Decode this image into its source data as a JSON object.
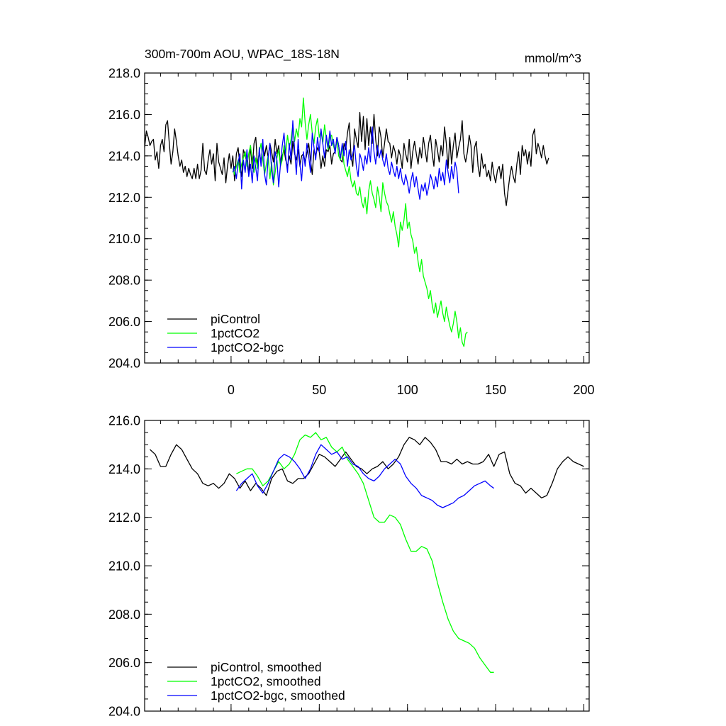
{
  "chart_data": [
    {
      "type": "line",
      "title": "300m-700m AOU, WPAC_18S-18N",
      "units": "mmol/m^3",
      "xlim": [
        -49,
        203
      ],
      "ylim": [
        204,
        218
      ],
      "yticks": [
        "204.0",
        "206.0",
        "208.0",
        "210.0",
        "212.0",
        "214.0",
        "216.0",
        "218.0"
      ],
      "xticks": [
        "0",
        "50",
        "100",
        "150",
        "200"
      ],
      "legend_position": "bottom-left",
      "series": [
        {
          "name": "piControl",
          "color": "#000000",
          "x_start": -49,
          "x_step": 1,
          "values": [
            214.4,
            215.2,
            214.9,
            214.5,
            214.7,
            214.8,
            213.8,
            214.2,
            213.4,
            214.5,
            214.8,
            214.2,
            215.5,
            215.7,
            214.6,
            213.6,
            214.2,
            215.3,
            214.7,
            214.0,
            213.5,
            213.8,
            213.2,
            213.5,
            213.0,
            213.4,
            213.1,
            212.9,
            213.4,
            212.9,
            213.6,
            212.9,
            213.3,
            214.6,
            213.3,
            213.1,
            213.8,
            214.3,
            213.6,
            214.1,
            212.8,
            214.6,
            213.7,
            213.4,
            213.1,
            213.9,
            212.7,
            213.5,
            214.1,
            213.4,
            214.0,
            212.8,
            214.1,
            214.4,
            213.5,
            213.0,
            214.3,
            214.0,
            213.7,
            213.1,
            214.5,
            213.4,
            214.6,
            214.9,
            213.5,
            214.2,
            213.7,
            214.5,
            214.0,
            214.5,
            213.9,
            214.6,
            214.2,
            213.7,
            214.8,
            214.1,
            214.5,
            213.6,
            214.0,
            214.3,
            213.8,
            213.5,
            214.0,
            213.6,
            214.7,
            214.1,
            213.8,
            214.3,
            213.5,
            214.0,
            214.1,
            213.7,
            214.1,
            214.6,
            213.8,
            213.1,
            214.3,
            214.0,
            214.4,
            214.2,
            213.4,
            214.0,
            213.5,
            214.3,
            214.2,
            214.5,
            213.6,
            214.1,
            214.2,
            214.9,
            214.5,
            213.8,
            213.7,
            214.6,
            214.3,
            215.1,
            215.6,
            214.0,
            213.5,
            215.3,
            214.8,
            214.4,
            216.1,
            214.7,
            215.9,
            214.3,
            215.8,
            214.5,
            215.4,
            214.6,
            216.0,
            214.8,
            214.0,
            215.4,
            214.9,
            213.9,
            214.6,
            215.3,
            214.7,
            214.6,
            213.9,
            214.5,
            214.2,
            213.6,
            214.3,
            214.0,
            213.4,
            214.6,
            214.1,
            213.7,
            214.8,
            213.4,
            214.2,
            214.7,
            214.1,
            213.6,
            214.4,
            213.9,
            214.9,
            214.3,
            213.7,
            214.6,
            215.0,
            214.1,
            213.5,
            214.8,
            214.3,
            213.7,
            214.5,
            214.0,
            215.4,
            214.6,
            213.4,
            214.9,
            213.6,
            214.5,
            215.1,
            213.9,
            214.4,
            214.8,
            215.7,
            214.1,
            213.7,
            214.2,
            215.0,
            214.5,
            213.2,
            214.4,
            214.7,
            213.5,
            213.0,
            214.1,
            213.4,
            213.6,
            213.0,
            213.3,
            212.8,
            213.7,
            213.1,
            212.7,
            213.3,
            213.5,
            212.9,
            213.6,
            212.2,
            211.6,
            212.3,
            213.0,
            213.5,
            213.0,
            212.7,
            213.6,
            214.2,
            213.1,
            214.5,
            214.0,
            214.3,
            213.6,
            214.2,
            213.5,
            215.0,
            215.3,
            214.1,
            214.6,
            214.3,
            213.9,
            214.5,
            214.0,
            213.6,
            213.9
          ]
        },
        {
          "name": "1pctCO2",
          "color": "#00ff00",
          "x_start": 1,
          "x_step": 1,
          "values": [
            213.4,
            213.1,
            213.5,
            213.8,
            213.2,
            213.6,
            213.9,
            214.2,
            213.5,
            214.1,
            214.5,
            213.8,
            213.2,
            213.9,
            213.4,
            214.2,
            214.6,
            213.8,
            213.1,
            213.6,
            214.0,
            212.9,
            213.7,
            212.6,
            213.2,
            213.9,
            214.3,
            213.5,
            213.8,
            214.5,
            214.1,
            215.0,
            214.4,
            214.8,
            215.5,
            214.7,
            215.3,
            214.9,
            215.8,
            215.4,
            216.8,
            215.6,
            214.8,
            215.5,
            216.0,
            215.1,
            214.6,
            215.4,
            215.8,
            214.9,
            215.2,
            214.6,
            215.5,
            214.8,
            214.3,
            214.9,
            215.0,
            214.5,
            214.2,
            214.8,
            214.0,
            213.8,
            214.5,
            213.6,
            213.3,
            213.0,
            213.5,
            212.8,
            212.5,
            212.8,
            212.2,
            212.1,
            212.5,
            211.8,
            211.5,
            212.0,
            211.2,
            212.3,
            212.8,
            212.2,
            211.9,
            211.5,
            212.5,
            212.0,
            211.3,
            212.7,
            212.2,
            211.8,
            211.6,
            211.2,
            210.8,
            211.3,
            210.6,
            210.2,
            209.6,
            210.8,
            210.4,
            210.9,
            211.7,
            210.5,
            210.8,
            210.2,
            209.9,
            209.3,
            209.6,
            208.9,
            208.4,
            209.0,
            208.2,
            207.9,
            207.6,
            207.1,
            207.5,
            206.8,
            206.4,
            206.9,
            206.2,
            206.6,
            207.0,
            206.4,
            206.0,
            206.7,
            206.2,
            205.8,
            205.5,
            205.9,
            206.5,
            206.0,
            205.2,
            205.7,
            205.0,
            204.8,
            205.4,
            205.5
          ]
        },
        {
          "name": "1pctCO2-bgc",
          "color": "#0000ff",
          "x_start": 1,
          "x_step": 1,
          "values": [
            213.2,
            213.5,
            212.9,
            213.7,
            214.1,
            212.4,
            213.8,
            213.2,
            214.3,
            213.0,
            213.6,
            212.7,
            214.0,
            213.4,
            212.8,
            214.4,
            213.5,
            214.8,
            213.1,
            212.6,
            213.9,
            214.6,
            213.3,
            212.7,
            214.2,
            213.8,
            212.5,
            213.6,
            214.5,
            215.1,
            214.0,
            213.2,
            214.6,
            213.8,
            215.7,
            214.3,
            213.1,
            214.8,
            213.6,
            212.8,
            214.2,
            213.5,
            214.6,
            214.0,
            213.2,
            215.1,
            214.4,
            213.8,
            214.9,
            214.2,
            215.3,
            214.6,
            213.9,
            215.0,
            214.4,
            215.2,
            214.5,
            214.8,
            214.1,
            214.9,
            214.5,
            213.9,
            214.6,
            214.0,
            214.7,
            213.5,
            214.3,
            213.8,
            214.1,
            214.5,
            213.5,
            213.0,
            214.1,
            213.8,
            213.3,
            214.0,
            213.6,
            214.4,
            213.7,
            215.4,
            214.2,
            213.6,
            214.5,
            213.9,
            214.3,
            213.8,
            213.5,
            214.1,
            213.4,
            213.1,
            213.7,
            213.3,
            213.0,
            213.5,
            212.9,
            213.4,
            212.8,
            212.6,
            213.1,
            212.7,
            212.2,
            212.8,
            213.2,
            212.5,
            213.0,
            212.4,
            211.9,
            212.6,
            212.3,
            212.7,
            212.1,
            212.5,
            213.1,
            212.8,
            212.4,
            213.0,
            212.5,
            213.4,
            212.8,
            213.2,
            212.6,
            213.8,
            213.2,
            212.7,
            213.5,
            212.9,
            213.7,
            213.3,
            212.2
          ]
        }
      ]
    },
    {
      "type": "line",
      "xlim": [
        -49,
        203
      ],
      "ylim": [
        204,
        216
      ],
      "yticks": [
        "204.0",
        "206.0",
        "208.0",
        "210.0",
        "212.0",
        "214.0",
        "216.0"
      ],
      "legend_position": "bottom-left",
      "series": [
        {
          "name": "piControl, smoothed",
          "color": "#000000",
          "x": [
            -46,
            -43,
            -40,
            -37,
            -34,
            -31,
            -28,
            -25,
            -22,
            -19,
            -16,
            -13,
            -10,
            -7,
            -4,
            -1,
            2,
            5,
            8,
            11,
            14,
            17,
            20,
            23,
            26,
            29,
            32,
            35,
            38,
            41,
            44,
            47,
            50,
            53,
            56,
            59,
            62,
            65,
            68,
            71,
            74,
            77,
            80,
            83,
            86,
            89,
            92,
            95,
            98,
            101,
            104,
            107,
            110,
            113,
            116,
            119,
            122,
            125,
            128,
            131,
            134,
            137,
            140,
            143,
            146,
            149,
            152,
            155,
            158,
            161,
            164,
            167,
            170,
            173,
            176,
            179,
            182,
            185,
            188,
            191,
            194,
            197,
            200
          ],
          "values": [
            214.8,
            214.6,
            214.1,
            214.1,
            214.6,
            215.0,
            214.8,
            214.4,
            214.0,
            213.8,
            213.4,
            213.3,
            213.4,
            213.2,
            213.4,
            213.8,
            213.6,
            213.2,
            213.5,
            213.1,
            213.4,
            213.2,
            212.9,
            213.6,
            213.9,
            214.0,
            213.5,
            213.4,
            213.6,
            213.6,
            213.8,
            214.2,
            214.6,
            214.5,
            214.3,
            214.1,
            214.4,
            214.7,
            214.4,
            214.1,
            214.0,
            213.8,
            214.0,
            214.1,
            214.3,
            214.0,
            214.2,
            214.5,
            215.0,
            215.3,
            215.2,
            215.0,
            215.3,
            215.1,
            214.8,
            214.3,
            214.3,
            214.2,
            214.4,
            214.2,
            214.3,
            214.2,
            214.2,
            214.3,
            214.6,
            214.1,
            214.6,
            214.7,
            213.8,
            213.4,
            213.3,
            213.0,
            213.2,
            213.0,
            212.8,
            212.9,
            213.4,
            214.0,
            214.3,
            214.5,
            214.3,
            214.2,
            214.1
          ]
        },
        {
          "name": "1pctCO2, smoothed",
          "color": "#00ff00",
          "x": [
            3,
            6,
            9,
            12,
            15,
            18,
            21,
            24,
            27,
            30,
            33,
            36,
            39,
            42,
            45,
            48,
            51,
            54,
            57,
            60,
            63,
            66,
            69,
            72,
            75,
            78,
            81,
            84,
            87,
            90,
            93,
            96,
            99,
            102,
            105,
            108,
            111,
            114,
            117,
            120,
            123,
            126,
            129,
            132,
            135,
            138,
            141,
            144,
            147,
            149
          ],
          "values": [
            213.8,
            213.9,
            214.0,
            214.0,
            213.7,
            213.3,
            213.5,
            213.9,
            214.3,
            214.0,
            214.2,
            214.6,
            215.2,
            215.4,
            215.3,
            215.5,
            215.2,
            215.3,
            214.9,
            214.7,
            214.9,
            214.4,
            214.1,
            213.8,
            213.4,
            212.7,
            212.0,
            211.8,
            211.8,
            212.1,
            212.0,
            211.7,
            211.1,
            210.6,
            210.6,
            210.8,
            210.7,
            210.2,
            209.3,
            208.5,
            207.8,
            207.3,
            207.0,
            206.9,
            206.8,
            206.6,
            206.2,
            205.9,
            205.6,
            205.6
          ]
        },
        {
          "name": "1pctCO2-bgc, smoothed",
          "color": "#0000ff",
          "x": [
            3,
            6,
            9,
            12,
            15,
            18,
            21,
            24,
            27,
            30,
            33,
            36,
            39,
            42,
            45,
            48,
            51,
            54,
            57,
            60,
            63,
            66,
            69,
            72,
            75,
            78,
            81,
            84,
            87,
            90,
            93,
            96,
            99,
            102,
            105,
            108,
            111,
            114,
            117,
            120,
            123,
            126,
            129,
            132,
            135,
            138,
            141,
            144,
            147,
            149
          ],
          "values": [
            213.1,
            213.4,
            213.6,
            213.8,
            213.3,
            213.0,
            213.4,
            213.9,
            214.4,
            214.6,
            214.5,
            214.3,
            214.0,
            213.6,
            214.0,
            214.6,
            215.0,
            214.8,
            214.6,
            214.7,
            214.4,
            214.5,
            214.2,
            214.1,
            213.8,
            213.6,
            213.5,
            213.7,
            214.0,
            214.2,
            214.4,
            214.2,
            213.7,
            213.4,
            213.2,
            212.9,
            212.8,
            212.7,
            212.5,
            212.4,
            212.5,
            212.6,
            212.8,
            212.9,
            213.1,
            213.3,
            213.4,
            213.5,
            213.3,
            213.2
          ]
        }
      ]
    }
  ]
}
